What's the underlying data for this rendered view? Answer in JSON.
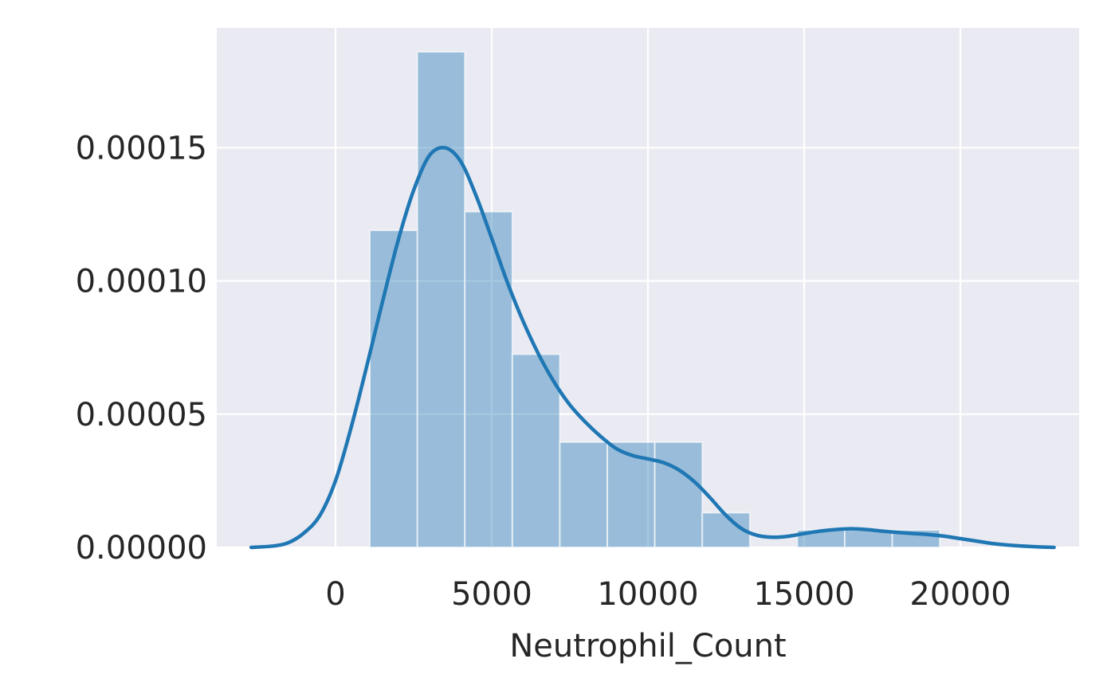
{
  "chart_data": {
    "type": "bar",
    "title": "",
    "xlabel": "Neutrophil_Count",
    "ylabel": "",
    "xlim": [
      -3800,
      23800
    ],
    "ylim": [
      0,
      0.000195
    ],
    "grid": true,
    "background": "#eaeaf2",
    "bar_color": "#1f77b4",
    "line_color": "#1f77b4",
    "x_ticks": [
      0,
      5000,
      10000,
      15000,
      20000
    ],
    "x_tick_labels": [
      "0",
      "5000",
      "10000",
      "15000",
      "20000"
    ],
    "y_ticks": [
      0,
      5e-05,
      0.0001,
      0.00015
    ],
    "y_tick_labels": [
      "0.00000",
      "0.00005",
      "0.00010",
      "0.00015"
    ],
    "histogram": {
      "bin_edges": [
        1100,
        2620,
        4140,
        5660,
        7180,
        8700,
        10220,
        11740,
        13260,
        14780,
        16300,
        17820,
        19340
      ],
      "density": [
        0.000119,
        0.000186,
        0.000126,
        7.25e-05,
        3.95e-05,
        3.95e-05,
        3.95e-05,
        1.3e-05,
        0,
        6.5e-06,
        6.5e-06,
        6.5e-06
      ]
    },
    "kde": {
      "x": [
        -2700,
        -2000,
        -1500,
        -1000,
        -500,
        0,
        500,
        1000,
        1500,
        2000,
        2500,
        3000,
        3500,
        4000,
        4500,
        5000,
        5500,
        6000,
        6500,
        7000,
        7500,
        8000,
        8500,
        9000,
        9500,
        10000,
        10500,
        11000,
        11500,
        12000,
        12500,
        13000,
        13500,
        14000,
        14500,
        15000,
        15500,
        16000,
        16500,
        17000,
        17500,
        18000,
        18500,
        19000,
        19500,
        20000,
        20500,
        21000,
        21500,
        22000,
        22500,
        23000
      ],
      "y": [
        0,
        5e-07,
        1.8e-06,
        5.5e-06,
        1.2e-05,
        2.5e-05,
        4.5e-05,
        6.8e-05,
        9.2e-05,
        0.000115,
        0.000134,
        0.000147,
        0.00015,
        0.000145,
        0.000132,
        0.000116,
        9.95e-05,
        8.5e-05,
        7.25e-05,
        6.2e-05,
        5.35e-05,
        4.7e-05,
        4.15e-05,
        3.7e-05,
        3.45e-05,
        3.32e-05,
        3.18e-05,
        2.9e-05,
        2.45e-05,
        1.85e-05,
        1.2e-05,
        7e-06,
        4.5e-06,
        3.8e-06,
        4.2e-06,
        5.2e-06,
        6.1e-06,
        6.7e-06,
        7e-06,
        6.7e-06,
        6.1e-06,
        5.6e-06,
        5.2e-06,
        4.8e-06,
        4.2e-06,
        3.3e-06,
        2.4e-06,
        1.5e-06,
        9e-07,
        5e-07,
        2e-07,
        0
      ]
    }
  }
}
